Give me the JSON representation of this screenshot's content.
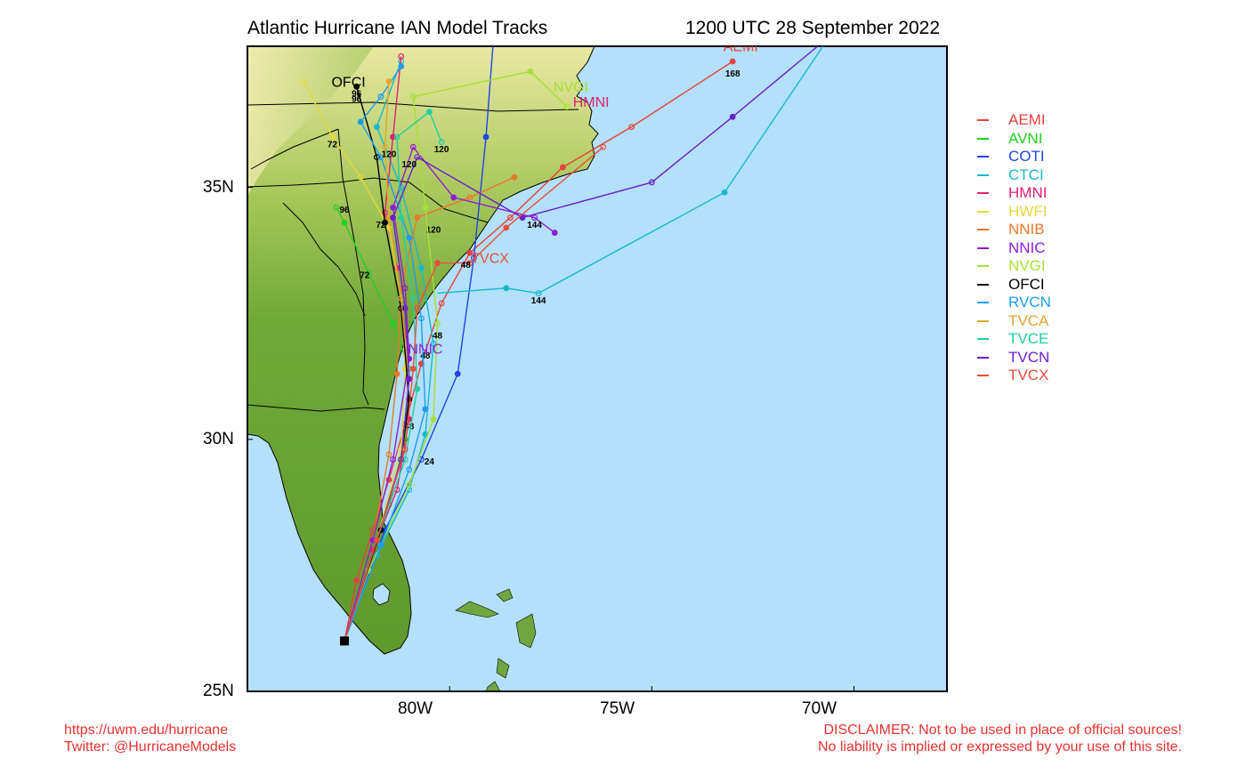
{
  "title_left": "Atlantic Hurricane IAN Model Tracks",
  "title_right": "1200 UTC 28 September 2022",
  "footer_left": [
    "https://uwm.edu/hurricane",
    "Twitter: @HurricaneModels"
  ],
  "footer_right": [
    "DISCLAIMER: Not to be used in place of official sources!",
    "No liability is implied or expressed by your use of this site."
  ],
  "axes": {
    "lat_labels": [
      "35N",
      "30N",
      "25N"
    ],
    "lon_labels": [
      "80W",
      "75W",
      "70W"
    ]
  },
  "colors": {
    "ocean": "#b3e0fb",
    "land_low": "#5f9a2e",
    "land_high": "#e9e8a2",
    "footer": "#e8322f"
  },
  "legend": [
    {
      "name": "AEMI",
      "color": "#e8403c"
    },
    {
      "name": "AVNI",
      "color": "#1fd11f"
    },
    {
      "name": "COTI",
      "color": "#2244e6"
    },
    {
      "name": "CTCI",
      "color": "#17b9c9"
    },
    {
      "name": "HMNI",
      "color": "#e0206f"
    },
    {
      "name": "HWFI",
      "color": "#e2d93b"
    },
    {
      "name": "NNIB",
      "color": "#e8782a"
    },
    {
      "name": "NNIC",
      "color": "#8e1fcf"
    },
    {
      "name": "NVGI",
      "color": "#a6e034"
    },
    {
      "name": "OFCI",
      "color": "#000000"
    },
    {
      "name": "RVCN",
      "color": "#1a9ef0"
    },
    {
      "name": "TVCA",
      "color": "#e3a72a"
    },
    {
      "name": "TVCE",
      "color": "#1fd0a0"
    },
    {
      "name": "TVCN",
      "color": "#6a1fc8"
    },
    {
      "name": "TVCX",
      "color": "#ec4c3c"
    }
  ],
  "start_position": {
    "lon": -82.6,
    "lat": 26.0
  },
  "tracks": [
    {
      "model": "AEMI",
      "points": [
        [
          -82.6,
          26.0
        ],
        [
          -82.3,
          27.2
        ],
        [
          -81.9,
          28.2
        ],
        [
          -81.5,
          29.2
        ],
        [
          -81.1,
          30.3
        ],
        [
          -80.7,
          31.5
        ],
        [
          -80.2,
          32.7
        ],
        [
          -79.5,
          33.7
        ],
        [
          -78.5,
          34.4
        ],
        [
          -77.2,
          35.4
        ],
        [
          -75.5,
          36.2
        ],
        [
          -73.0,
          37.5
        ]
      ],
      "labels": [
        {
          "lon": -73.0,
          "lat": 37.2,
          "text": "168"
        }
      ]
    },
    {
      "model": "AVNI",
      "points": [
        [
          -82.6,
          26.0
        ],
        [
          -82.0,
          27.6
        ],
        [
          -81.5,
          28.7
        ],
        [
          -81.1,
          30.0
        ],
        [
          -81.0,
          31.4
        ],
        [
          -81.4,
          32.3
        ],
        [
          -82.0,
          33.3
        ],
        [
          -82.6,
          34.3
        ],
        [
          -82.8,
          34.6
        ]
      ],
      "labels": [
        {
          "lon": -82.6,
          "lat": 34.5,
          "text": "96"
        },
        {
          "lon": -82.1,
          "lat": 33.2,
          "text": "72"
        }
      ]
    },
    {
      "model": "COTI",
      "points": [
        [
          -82.6,
          26.0
        ],
        [
          -81.6,
          28.2
        ],
        [
          -80.7,
          29.6
        ],
        [
          -79.8,
          31.3
        ],
        [
          -79.4,
          33.6
        ],
        [
          -79.1,
          36.0
        ],
        [
          -78.9,
          38.1
        ]
      ],
      "labels": [
        {
          "lon": -80.5,
          "lat": 29.5,
          "text": "24"
        }
      ]
    },
    {
      "model": "CTCI",
      "points": [
        [
          -82.6,
          26.0
        ],
        [
          -81.8,
          27.7
        ],
        [
          -81.0,
          29.0
        ],
        [
          -80.6,
          30.1
        ],
        [
          -80.4,
          31.9
        ],
        [
          -80.7,
          33.4
        ],
        [
          -81.2,
          35.0
        ],
        [
          -81.8,
          36.2
        ],
        [
          -81.2,
          37.5
        ]
      ],
      "labels": [
        {
          "lon": -80.6,
          "lat": 31.6,
          "text": "48"
        }
      ]
    },
    {
      "model": "HMNI",
      "points": [
        [
          -82.6,
          26.0
        ],
        [
          -81.9,
          27.8
        ],
        [
          -81.3,
          29.0
        ],
        [
          -81.0,
          30.4
        ],
        [
          -81.1,
          32.1
        ],
        [
          -81.3,
          33.4
        ],
        [
          -81.6,
          34.5
        ],
        [
          -81.4,
          36.0
        ],
        [
          -81.2,
          37.6
        ]
      ],
      "labels": [
        {
          "lon": -81.0,
          "lat": 30.2,
          "text": "48"
        }
      ]
    },
    {
      "model": "HWFI",
      "points": [
        [
          -82.6,
          26.0
        ],
        [
          -81.8,
          28.0
        ],
        [
          -81.2,
          29.8
        ],
        [
          -81.1,
          31.4
        ],
        [
          -81.2,
          32.8
        ],
        [
          -81.5,
          34.2
        ],
        [
          -82.2,
          35.2
        ],
        [
          -82.9,
          36.0
        ],
        [
          -83.6,
          37.1
        ]
      ],
      "labels": [
        {
          "lon": -82.9,
          "lat": 35.8,
          "text": "72"
        }
      ]
    },
    {
      "model": "NNIB",
      "points": [
        [
          -82.6,
          26.0
        ],
        [
          -81.9,
          28.0
        ],
        [
          -81.5,
          29.7
        ],
        [
          -81.3,
          31.3
        ],
        [
          -81.2,
          33.0
        ],
        [
          -80.8,
          34.4
        ],
        [
          -79.5,
          34.8
        ],
        [
          -78.4,
          35.2
        ]
      ],
      "labels": [
        {
          "lon": -80.4,
          "lat": 34.1,
          "text": "120"
        }
      ]
    },
    {
      "model": "NNIC",
      "points": [
        [
          -82.6,
          26.0
        ],
        [
          -81.9,
          28.0
        ],
        [
          -81.4,
          29.6
        ],
        [
          -81.0,
          31.6
        ],
        [
          -81.1,
          33.0
        ],
        [
          -81.4,
          34.6
        ],
        [
          -80.9,
          35.8
        ],
        [
          -79.9,
          34.8
        ],
        [
          -77.9,
          34.4
        ],
        [
          -77.4,
          34.1
        ]
      ],
      "labels": [
        {
          "lon": -77.9,
          "lat": 34.2,
          "text": "144"
        }
      ]
    },
    {
      "model": "NVGI",
      "points": [
        [
          -82.6,
          26.0
        ],
        [
          -82.0,
          27.4
        ],
        [
          -81.0,
          29.1
        ],
        [
          -80.4,
          30.4
        ],
        [
          -80.3,
          32.3
        ],
        [
          -80.6,
          34.6
        ],
        [
          -80.9,
          36.8
        ],
        [
          -78.0,
          37.3
        ],
        [
          -77.1,
          36.6
        ]
      ],
      "labels": [
        {
          "lon": -80.3,
          "lat": 32.0,
          "text": "48"
        }
      ]
    },
    {
      "model": "OFCI",
      "points": [
        [
          -82.6,
          26.0
        ],
        [
          -81.7,
          28.2
        ],
        [
          -81.2,
          29.6
        ],
        [
          -81.0,
          30.8
        ],
        [
          -81.2,
          32.6
        ],
        [
          -81.6,
          34.3
        ],
        [
          -81.8,
          35.6
        ],
        [
          -82.3,
          37.0
        ]
      ],
      "labels": [
        {
          "lon": -82.3,
          "lat": 36.8,
          "text": "96"
        },
        {
          "lon": -81.7,
          "lat": 34.2,
          "text": "72"
        }
      ]
    },
    {
      "model": "RVCN",
      "points": [
        [
          -82.6,
          26.0
        ],
        [
          -81.7,
          27.9
        ],
        [
          -81.0,
          29.4
        ],
        [
          -80.6,
          30.6
        ],
        [
          -80.7,
          32.4
        ],
        [
          -81.0,
          34.0
        ],
        [
          -81.7,
          35.6
        ],
        [
          -82.2,
          36.3
        ],
        [
          -81.7,
          36.8
        ],
        [
          -81.2,
          37.4
        ]
      ],
      "labels": [
        {
          "lon": -82.3,
          "lat": 36.7,
          "text": "96"
        }
      ]
    },
    {
      "model": "TVCA",
      "points": [
        [
          -82.6,
          26.0
        ],
        [
          -81.8,
          28.0
        ],
        [
          -81.2,
          29.6
        ],
        [
          -81.0,
          31.2
        ],
        [
          -81.2,
          32.8
        ],
        [
          -81.5,
          34.4
        ],
        [
          -81.6,
          35.8
        ],
        [
          -81.5,
          37.1
        ]
      ],
      "labels": [
        {
          "lon": -81.5,
          "lat": 35.6,
          "text": "120"
        }
      ]
    },
    {
      "model": "TVCE",
      "points": [
        [
          -82.6,
          26.0
        ],
        [
          -81.8,
          28.0
        ],
        [
          -81.1,
          29.6
        ],
        [
          -80.8,
          31.0
        ],
        [
          -80.9,
          32.8
        ],
        [
          -81.2,
          34.4
        ],
        [
          -81.3,
          36.0
        ],
        [
          -80.5,
          36.5
        ],
        [
          -80.2,
          35.9
        ]
      ],
      "labels": [
        {
          "lon": -80.2,
          "lat": 35.7,
          "text": "120"
        }
      ]
    },
    {
      "model": "TVCN",
      "points": [
        [
          -82.6,
          26.0
        ],
        [
          -81.8,
          28.0
        ],
        [
          -81.2,
          29.6
        ],
        [
          -81.0,
          31.2
        ],
        [
          -81.1,
          32.6
        ],
        [
          -81.4,
          34.4
        ],
        [
          -80.8,
          35.6
        ],
        [
          -78.2,
          34.4
        ],
        [
          -75.0,
          35.1
        ],
        [
          -73.0,
          36.4
        ],
        [
          -70.6,
          38.0
        ]
      ],
      "labels": [
        {
          "lon": -81.0,
          "lat": 35.4,
          "text": "120"
        }
      ]
    },
    {
      "model": "TVCX",
      "points": [
        [
          -82.6,
          26.0
        ],
        [
          -81.8,
          28.0
        ],
        [
          -81.1,
          29.8
        ],
        [
          -80.9,
          31.4
        ],
        [
          -80.8,
          32.6
        ],
        [
          -80.3,
          33.5
        ],
        [
          -79.5,
          33.5
        ],
        [
          -78.6,
          34.2
        ],
        [
          -76.2,
          35.8
        ]
      ],
      "labels": [
        {
          "lon": -79.6,
          "lat": 33.4,
          "text": "48"
        }
      ]
    },
    {
      "model": "CTCI-ext",
      "points": [
        [
          -80.3,
          32.9
        ],
        [
          -78.6,
          33.0
        ],
        [
          -77.8,
          32.9
        ],
        [
          -73.2,
          34.9
        ],
        [
          -70.6,
          38.0
        ]
      ],
      "labels": [
        {
          "lon": -77.8,
          "lat": 32.7,
          "text": "144"
        }
      ]
    }
  ],
  "model_tags": [
    {
      "lon": -72.8,
      "lat": 37.7,
      "text": "AEMI",
      "color": "#e8403c"
    },
    {
      "lon": -77.0,
      "lat": 36.9,
      "text": "NVGI",
      "color": "#a6e034"
    },
    {
      "lon": -76.5,
      "lat": 36.6,
      "text": "HMNI",
      "color": "#e0206f"
    },
    {
      "lon": -82.5,
      "lat": 37.0,
      "text": "OFCI",
      "color": "#000000"
    },
    {
      "lon": -79.0,
      "lat": 33.5,
      "text": "TVCX",
      "color": "#ec4c3c"
    },
    {
      "lon": -80.6,
      "lat": 31.7,
      "text": "NNIC",
      "color": "#8e1fcf"
    }
  ]
}
